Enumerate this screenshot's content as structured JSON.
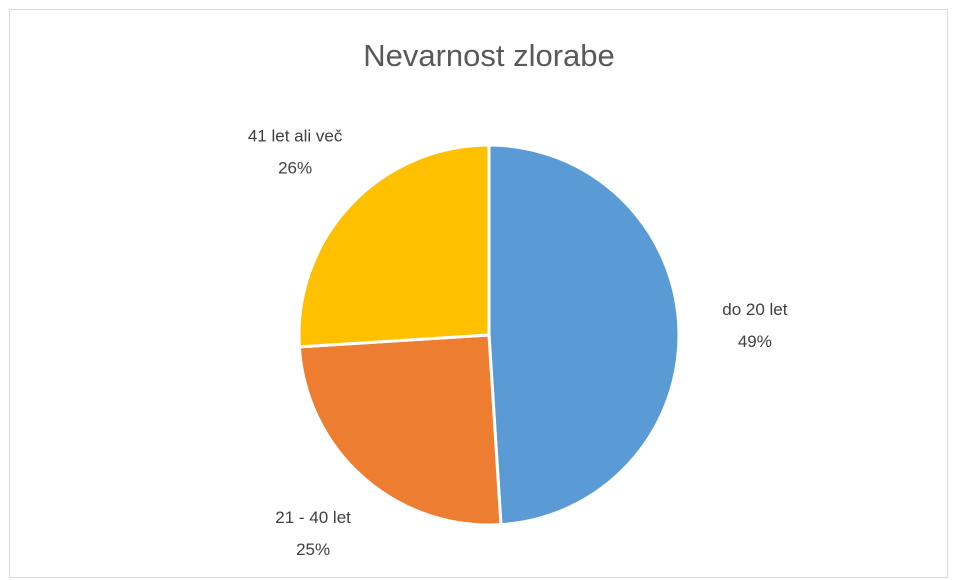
{
  "chart_data": {
    "type": "pie",
    "title": "Nevarnost zlorabe",
    "categories": [
      "do 20 let",
      "21 - 40 let",
      "41 let ali več"
    ],
    "values": [
      49,
      25,
      26
    ],
    "value_labels": [
      "49%",
      "25%",
      "26%"
    ],
    "colors": [
      "#5b9bd5",
      "#ed7d31",
      "#ffc000"
    ]
  }
}
